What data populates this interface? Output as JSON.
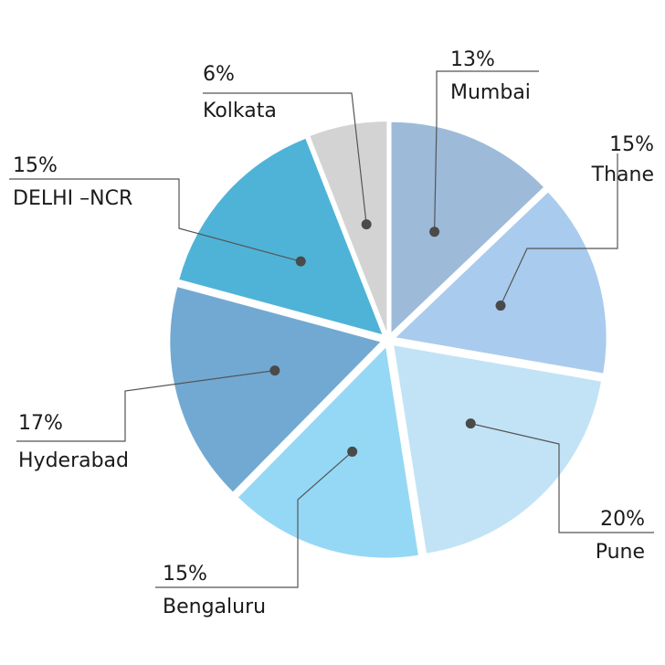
{
  "chart_data": {
    "type": "pie",
    "title": "",
    "slices": [
      {
        "label": "Mumbai",
        "value": 13,
        "value_label": "13%",
        "color": "#9dbad9"
      },
      {
        "label": "Thane",
        "value": 15,
        "value_label": "15%",
        "color": "#a9cbee"
      },
      {
        "label": "Pune",
        "value": 20,
        "value_label": "20%",
        "color": "#c2e3f5"
      },
      {
        "label": "Bengaluru",
        "value": 15,
        "value_label": "15%",
        "color": "#95d8f5"
      },
      {
        "label": "Hyderabad",
        "value": 17,
        "value_label": "17%",
        "color": "#72a9d2"
      },
      {
        "label": "DELHI –NCR",
        "value": 15,
        "value_label": "15%",
        "color": "#4fb3d7"
      },
      {
        "label": "Kolkata",
        "value": 6,
        "value_label": "6%",
        "color": "#d3d3d3"
      }
    ],
    "start_angle_deg": 0,
    "direction": "clockwise",
    "exploded": true,
    "legend": "none"
  }
}
